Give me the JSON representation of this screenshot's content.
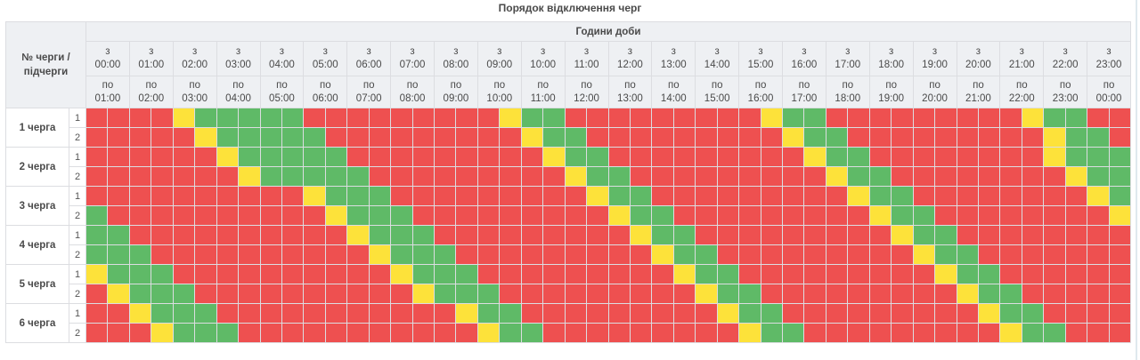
{
  "title": "Порядок відключення черг",
  "header": {
    "queue_label": "№ черги / підчерги",
    "hours_label": "Години доби",
    "from_prefix": "з",
    "to_prefix": "по",
    "columns": [
      {
        "from": "00:00",
        "to": "01:00"
      },
      {
        "from": "01:00",
        "to": "02:00"
      },
      {
        "from": "02:00",
        "to": "03:00"
      },
      {
        "from": "03:00",
        "to": "04:00"
      },
      {
        "from": "04:00",
        "to": "05:00"
      },
      {
        "from": "05:00",
        "to": "06:00"
      },
      {
        "from": "06:00",
        "to": "07:00"
      },
      {
        "from": "07:00",
        "to": "08:00"
      },
      {
        "from": "08:00",
        "to": "09:00"
      },
      {
        "from": "09:00",
        "to": "10:00"
      },
      {
        "from": "10:00",
        "to": "11:00"
      },
      {
        "from": "11:00",
        "to": "12:00"
      },
      {
        "from": "12:00",
        "to": "13:00"
      },
      {
        "from": "13:00",
        "to": "14:00"
      },
      {
        "from": "14:00",
        "to": "15:00"
      },
      {
        "from": "15:00",
        "to": "16:00"
      },
      {
        "from": "16:00",
        "to": "17:00"
      },
      {
        "from": "17:00",
        "to": "18:00"
      },
      {
        "from": "18:00",
        "to": "19:00"
      },
      {
        "from": "19:00",
        "to": "20:00"
      },
      {
        "from": "20:00",
        "to": "21:00"
      },
      {
        "from": "21:00",
        "to": "22:00"
      },
      {
        "from": "22:00",
        "to": "23:00"
      },
      {
        "from": "23:00",
        "to": "00:00"
      }
    ]
  },
  "legend_colors": {
    "R": "#ee5050",
    "G": "#5fba67",
    "Y": "#fde23a"
  },
  "queues": [
    {
      "label": "1 черга",
      "subqueues": [
        {
          "label": "1",
          "slots": "RRRRYGGGGGRRRRRRRRRYGGRRRRRRRRRYGGRRRRRRRRRYGGRR"
        },
        {
          "label": "2",
          "slots": "RRRRRYGGGGGRRRRRRRRRYGGRRRRRRRRRYGGRRRRRRRRRYGGR"
        }
      ]
    },
    {
      "label": "2 черга",
      "subqueues": [
        {
          "label": "1",
          "slots": "RRRRRRYGGGGGRRRRRRRRRYGGRRRRRRRRRYGGRRRRRRRRYGGG"
        },
        {
          "label": "2",
          "slots": "RRRRRRRYGGGGGRRRRRRRRRYGGRRRRRRRRRYGGRRRRRRRRYGG"
        }
      ]
    },
    {
      "label": "3 черга",
      "subqueues": [
        {
          "label": "1",
          "slots": "RRRRRRRRRRYGGGRRRRRRRRRYGGRRRRRRRRRYGGRRRRRRRRYG"
        },
        {
          "label": "2",
          "slots": "GRRRRRRRRRRYGGGRRRRRRRRRYGGRRRRRRRRRYGGRRRRRRRRY"
        }
      ]
    },
    {
      "label": "4 черга",
      "subqueues": [
        {
          "label": "1",
          "slots": "GGRRRRRRRRRRYGGGRRRRRRRRRYGGRRRRRRRRRYGGRRRRRRRR"
        },
        {
          "label": "2",
          "slots": "GGGRRRRRRRRRRYGGGRRRRRRRRRYGGRRRRRRRRRYGGRRRRRRR"
        }
      ]
    },
    {
      "label": "5 черга",
      "subqueues": [
        {
          "label": "1",
          "slots": "YGGGRRRRRRRRRRYGGGRRRRRRRRRYGGRRRRRRRRRYGGRRRRRR"
        },
        {
          "label": "2",
          "slots": "RYGGGRRRRRRRRRRYGGGRRRRRRRRRYGGRRRRRRRRRYGGRRRRR"
        }
      ]
    },
    {
      "label": "6 черга",
      "subqueues": [
        {
          "label": "1",
          "slots": "RRYGGGRRRRRRRRRRRYGGRRRRRRRRRYGGRRRRRRRRRYGGRRRR"
        },
        {
          "label": "2",
          "slots": "RRRYGGGRRRRRRRRRRRYGGRRRRRRRRRYGGRRRRRRRRRYGGRRR"
        }
      ]
    }
  ]
}
